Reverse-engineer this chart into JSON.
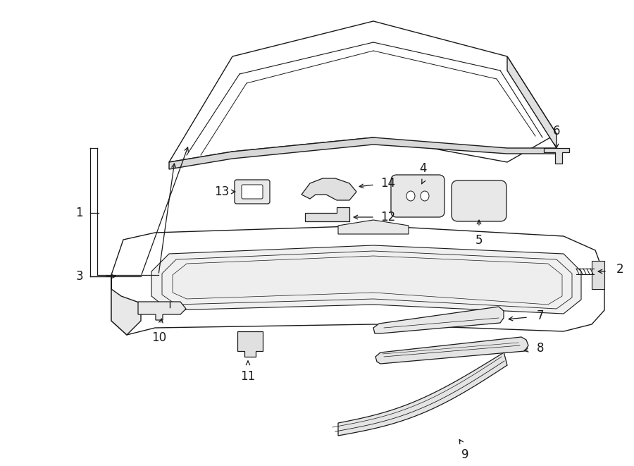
{
  "bg_color": "#ffffff",
  "line_color": "#1a1a1a",
  "figsize": [
    9.0,
    6.61
  ],
  "dpi": 100,
  "lw": 1.0,
  "fs": 12
}
